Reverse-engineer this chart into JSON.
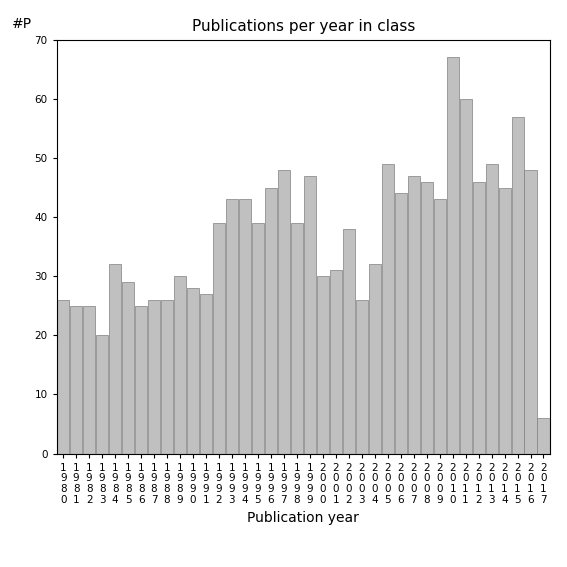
{
  "years": [
    "1980",
    "1981",
    "1982",
    "1983",
    "1984",
    "1985",
    "1986",
    "1987",
    "1988",
    "1989",
    "1990",
    "1991",
    "1992",
    "1993",
    "1994",
    "1995",
    "1996",
    "1997",
    "1998",
    "1999",
    "2000",
    "2001",
    "2002",
    "2003",
    "2004",
    "2005",
    "2006",
    "2007",
    "2008",
    "2009",
    "2010",
    "2011",
    "2012",
    "2013",
    "2014",
    "2015",
    "2016",
    "2017"
  ],
  "values": [
    26,
    25,
    25,
    20,
    32,
    29,
    25,
    26,
    26,
    30,
    28,
    27,
    39,
    43,
    43,
    39,
    45,
    48,
    39,
    47,
    30,
    31,
    38,
    26,
    32,
    49,
    44,
    47,
    46,
    43,
    67,
    60,
    46,
    49,
    45,
    57,
    48,
    6
  ],
  "title": "Publications per year in class",
  "xlabel": "Publication year",
  "ylabel": "#P",
  "ylim": [
    0,
    70
  ],
  "yticks": [
    0,
    10,
    20,
    30,
    40,
    50,
    60,
    70
  ],
  "bar_color": "#c0c0c0",
  "bar_edge_color": "#808080",
  "background_color": "#ffffff",
  "tick_label_fontsize": 7.5,
  "axis_label_fontsize": 10,
  "title_fontsize": 11
}
